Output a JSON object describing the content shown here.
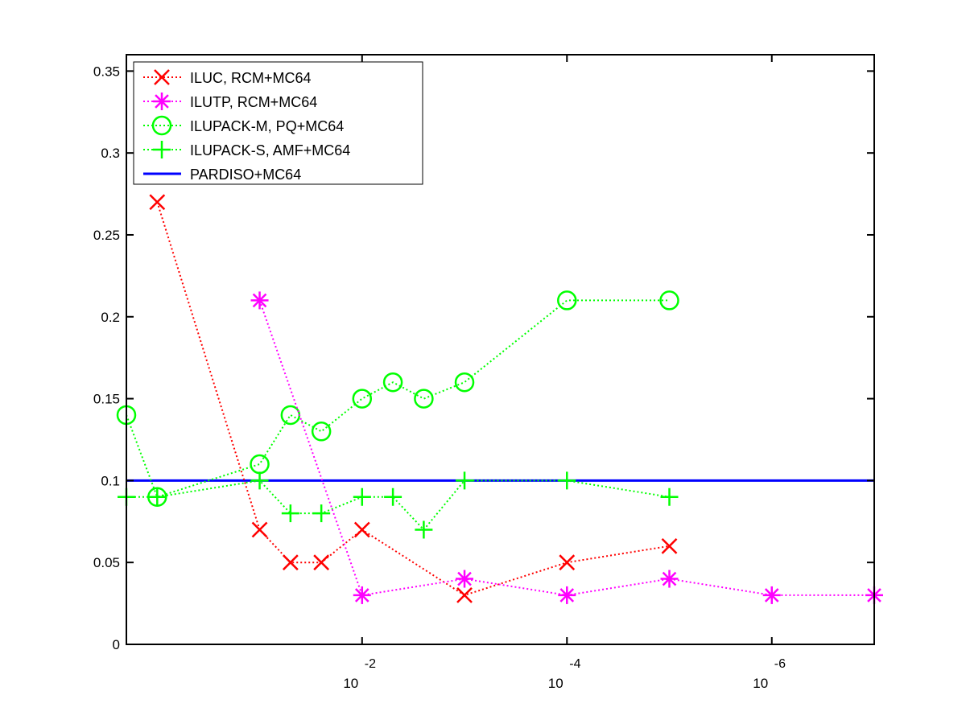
{
  "chart_data": {
    "type": "line",
    "title": "",
    "xlabel": "",
    "ylabel": "",
    "x_scale": "log",
    "x_direction": "decreasing",
    "xlim": [
      2.0,
      1e-07
    ],
    "ylim": [
      0,
      0.36
    ],
    "yticks": [
      0,
      0.05,
      0.1,
      0.15,
      0.2,
      0.25,
      0.3,
      0.35
    ],
    "ytick_labels": [
      "0",
      "0.05",
      "0.1",
      "0.15",
      "0.2",
      "0.25",
      "0.3",
      "0.35"
    ],
    "xticks": [
      0.01,
      0.0001,
      1e-06
    ],
    "xtick_labels": [
      {
        "base": "10",
        "exponent": "-2"
      },
      {
        "base": "10",
        "exponent": "-4"
      },
      {
        "base": "10",
        "exponent": "-6"
      }
    ],
    "grid": false,
    "legend_position": "top-left",
    "series": [
      {
        "name": "ILUC, RCM+MC64",
        "color": "#ff0000",
        "line": "dotted",
        "marker": "x",
        "x": [
          1.0,
          0.1,
          0.05,
          0.025,
          0.01,
          0.001,
          0.0001,
          1e-05
        ],
        "y": [
          0.27,
          0.07,
          0.05,
          0.05,
          0.07,
          0.03,
          0.05,
          0.06
        ]
      },
      {
        "name": "ILUTP, RCM+MC64",
        "color": "#ff00ff",
        "line": "dotted",
        "marker": "asterisk",
        "x": [
          0.1,
          0.01,
          0.001,
          0.0001,
          1e-05,
          1e-06,
          1e-07
        ],
        "y": [
          0.21,
          0.03,
          0.04,
          0.03,
          0.04,
          0.03,
          0.03
        ]
      },
      {
        "name": "ILUPACK-M, PQ+MC64",
        "color": "#00ff00",
        "line": "dotted",
        "marker": "circle",
        "x": [
          2.0,
          1.0,
          0.1,
          0.05,
          0.025,
          0.01,
          0.005,
          0.0025,
          0.001,
          0.0001,
          1e-05
        ],
        "y": [
          0.14,
          0.09,
          0.11,
          0.14,
          0.13,
          0.15,
          0.16,
          0.15,
          0.16,
          0.21,
          0.21
        ]
      },
      {
        "name": "ILUPACK-S, AMF+MC64",
        "color": "#00ff00",
        "line": "dotted",
        "marker": "plus",
        "x": [
          2.0,
          1.0,
          0.1,
          0.05,
          0.025,
          0.01,
          0.005,
          0.0025,
          0.001,
          0.0001,
          1e-05
        ],
        "y": [
          0.09,
          0.09,
          0.1,
          0.08,
          0.08,
          0.09,
          0.09,
          0.07,
          0.1,
          0.1,
          0.09
        ]
      },
      {
        "name": "PARDISO+MC64",
        "color": "#0000ff",
        "line": "solid",
        "marker": "none",
        "x": [
          2.0,
          1e-07
        ],
        "y": [
          0.1,
          0.1
        ]
      }
    ]
  }
}
